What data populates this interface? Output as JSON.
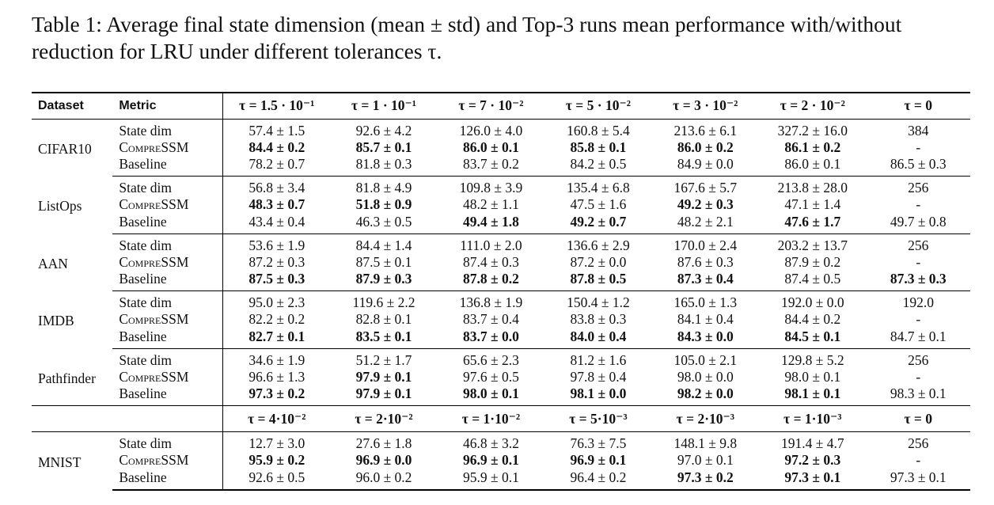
{
  "caption": {
    "line1": "Table 1: Average final state dimension (mean ± std) and Top-3 runs mean performance with/without",
    "line2": "reduction for LRU under different tolerances τ."
  },
  "header": {
    "dataset": "Dataset",
    "metric": "Metric",
    "taus": [
      "τ = 1.5 · 10⁻¹",
      "τ = 1 · 10⁻¹",
      "τ = 7 · 10⁻²",
      "τ = 5 · 10⁻²",
      "τ = 3 · 10⁻²",
      "τ = 2 · 10⁻²",
      "τ = 0"
    ]
  },
  "mnist_header": {
    "taus": [
      "τ = 4·10⁻²",
      "τ = 2·10⁻²",
      "τ = 1·10⁻²",
      "τ = 5·10⁻³",
      "τ = 2·10⁻³",
      "τ = 1·10⁻³",
      "τ = 0"
    ]
  },
  "metrics": [
    "State dim",
    "CompreSSM",
    "Baseline"
  ],
  "blocks": [
    {
      "dataset": "CIFAR10",
      "rows": [
        [
          "57.4 ± 1.5",
          "92.6 ± 4.2",
          "126.0 ± 4.0",
          "160.8 ± 5.4",
          "213.6 ± 6.1",
          "327.2 ± 16.0",
          "384"
        ],
        [
          "84.4 ± 0.2",
          "85.7 ± 0.1",
          "86.0 ± 0.1",
          "85.8 ± 0.1",
          "86.0 ± 0.2",
          "86.1 ± 0.2",
          "-"
        ],
        [
          "78.2 ± 0.7",
          "81.8 ± 0.3",
          "83.7 ± 0.2",
          "84.2 ± 0.5",
          "84.9 ± 0.0",
          "86.0 ± 0.1",
          "86.5 ± 0.3"
        ]
      ],
      "bold": [
        [],
        [
          0,
          1,
          2,
          3,
          4,
          5
        ],
        []
      ]
    },
    {
      "dataset": "ListOps",
      "rows": [
        [
          "56.8 ± 3.4",
          "81.8 ± 4.9",
          "109.8 ± 3.9",
          "135.4 ± 6.8",
          "167.6 ± 5.7",
          "213.8 ± 28.0",
          "256"
        ],
        [
          "48.3 ± 0.7",
          "51.8 ± 0.9",
          "48.2 ± 1.1",
          "47.5 ± 1.6",
          "49.2 ± 0.3",
          "47.1 ± 1.4",
          "-"
        ],
        [
          "43.4 ± 0.4",
          "46.3 ± 0.5",
          "49.4 ± 1.8",
          "49.2 ± 0.7",
          "48.2 ± 2.1",
          "47.6 ± 1.7",
          "49.7 ± 0.8"
        ]
      ],
      "bold": [
        [],
        [
          0,
          1,
          4
        ],
        [
          2,
          3,
          5
        ]
      ]
    },
    {
      "dataset": "AAN",
      "rows": [
        [
          "53.6 ± 1.9",
          "84.4 ± 1.4",
          "111.0 ± 2.0",
          "136.6 ± 2.9",
          "170.0 ± 2.4",
          "203.2 ± 13.7",
          "256"
        ],
        [
          "87.2 ± 0.3",
          "87.5 ± 0.1",
          "87.4 ± 0.3",
          "87.2 ± 0.0",
          "87.6 ± 0.3",
          "87.9 ± 0.2",
          "-"
        ],
        [
          "87.5 ± 0.3",
          "87.9 ± 0.3",
          "87.8 ± 0.2",
          "87.8 ± 0.5",
          "87.3 ± 0.4",
          "87.4 ± 0.5",
          "87.3 ± 0.3"
        ]
      ],
      "bold": [
        [],
        [],
        [
          0,
          1,
          2,
          3,
          4,
          6
        ]
      ]
    },
    {
      "dataset": "IMDB",
      "rows": [
        [
          "95.0 ± 2.3",
          "119.6 ± 2.2",
          "136.8 ± 1.9",
          "150.4 ± 1.2",
          "165.0 ± 1.3",
          "192.0 ± 0.0",
          "192.0"
        ],
        [
          "82.2 ± 0.2",
          "82.8 ± 0.1",
          "83.7 ± 0.4",
          "83.8 ± 0.3",
          "84.1 ± 0.4",
          "84.4 ± 0.2",
          "-"
        ],
        [
          "82.7 ± 0.1",
          "83.5 ± 0.1",
          "83.7 ± 0.0",
          "84.0 ± 0.4",
          "84.3 ± 0.0",
          "84.5 ± 0.1",
          "84.7 ± 0.1"
        ]
      ],
      "bold": [
        [],
        [],
        [
          0,
          1,
          2,
          3,
          4,
          5
        ]
      ]
    },
    {
      "dataset": "Pathfinder",
      "rows": [
        [
          "34.6 ± 1.9",
          "51.2 ± 1.7",
          "65.6 ± 2.3",
          "81.2 ± 1.6",
          "105.0 ± 2.1",
          "129.8 ± 5.2",
          "256"
        ],
        [
          "96.6 ± 1.3",
          "97.9 ± 0.1",
          "97.6 ± 0.5",
          "97.8 ± 0.4",
          "98.0 ± 0.0",
          "98.0 ± 0.1",
          "-"
        ],
        [
          "97.3 ± 0.2",
          "97.9 ± 0.1",
          "98.0 ± 0.1",
          "98.1 ± 0.0",
          "98.2 ± 0.0",
          "98.1 ± 0.1",
          "98.3 ± 0.1"
        ]
      ],
      "bold": [
        [],
        [
          1
        ],
        [
          0,
          1,
          2,
          3,
          4,
          5
        ]
      ]
    },
    {
      "dataset": "MNIST",
      "rows": [
        [
          "12.7 ± 3.0",
          "27.6 ± 1.8",
          "46.8 ± 3.2",
          "76.3 ± 7.5",
          "148.1 ± 9.8",
          "191.4 ± 4.7",
          "256"
        ],
        [
          "95.9 ± 0.2",
          "96.9 ± 0.0",
          "96.9 ± 0.1",
          "96.9 ± 0.1",
          "97.0 ± 0.1",
          "97.2 ± 0.3",
          "-"
        ],
        [
          "92.6 ± 0.5",
          "96.0 ± 0.2",
          "95.9 ± 0.1",
          "96.4 ± 0.2",
          "97.3 ± 0.2",
          "97.3 ± 0.1",
          "97.3 ± 0.1"
        ]
      ],
      "bold": [
        [],
        [
          0,
          1,
          2,
          3,
          5
        ],
        [
          4,
          5
        ]
      ]
    }
  ]
}
